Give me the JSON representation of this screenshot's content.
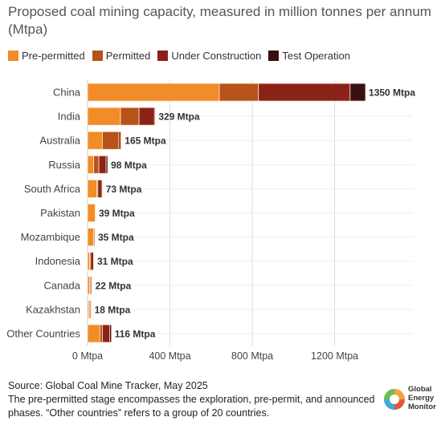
{
  "chart_data": {
    "type": "bar",
    "orientation": "horizontal",
    "stacked": true,
    "title": "Proposed coal mining capacity, measured in million tonnes per annum (Mtpa)",
    "categories": [
      "China",
      "India",
      "Australia",
      "Russia",
      "South Africa",
      "Pakistan",
      "Mozambique",
      "Indonesia",
      "Canada",
      "Kazakhstan",
      "Other Countries"
    ],
    "totals": [
      1350,
      329,
      165,
      98,
      73,
      39,
      35,
      31,
      22,
      18,
      116
    ],
    "total_labels": [
      "1350 Mtpa",
      "329 Mtpa",
      "165 Mtpa",
      "98 Mtpa",
      "73 Mtpa",
      "39 Mtpa",
      "35 Mtpa",
      "31 Mtpa",
      "22 Mtpa",
      "18 Mtpa",
      "116 Mtpa"
    ],
    "series": [
      {
        "name": "Pre-permitted",
        "color": "#F28C28",
        "values": [
          640,
          160,
          72,
          30,
          45,
          37,
          30,
          10,
          10,
          6,
          60
        ]
      },
      {
        "name": "Permitted",
        "color": "#B5531A",
        "values": [
          190,
          90,
          80,
          25,
          5,
          2,
          5,
          5,
          5,
          5,
          12
        ]
      },
      {
        "name": "Under Construction",
        "color": "#8B2218",
        "values": [
          445,
          75,
          10,
          35,
          20,
          0,
          0,
          14,
          5,
          5,
          35
        ]
      },
      {
        "name": "Test Operation",
        "color": "#3A1010",
        "values": [
          75,
          4,
          3,
          8,
          3,
          0,
          0,
          2,
          2,
          2,
          9
        ]
      }
    ],
    "x_ticks": [
      0,
      400,
      800,
      1200
    ],
    "x_tick_labels": [
      "0 Mtpa",
      "400 Mtpa",
      "800 Mtpa",
      "1200 Mtpa"
    ],
    "xlim": [
      0,
      1580
    ],
    "legend": "top-left",
    "grid": true,
    "separator_color": "#FFE8D0",
    "grid_color": "#DDDDDD"
  },
  "footer": {
    "source": "Source: Global Coal Mine Tracker, May 2025",
    "note": "The pre-permitted stage encompasses the exploration, pre-permit, and announced phases. “Other countries” refers to a group of 20 countries."
  },
  "logo": {
    "line1": "Global",
    "line2": "Energy",
    "line3": "Monitor"
  }
}
